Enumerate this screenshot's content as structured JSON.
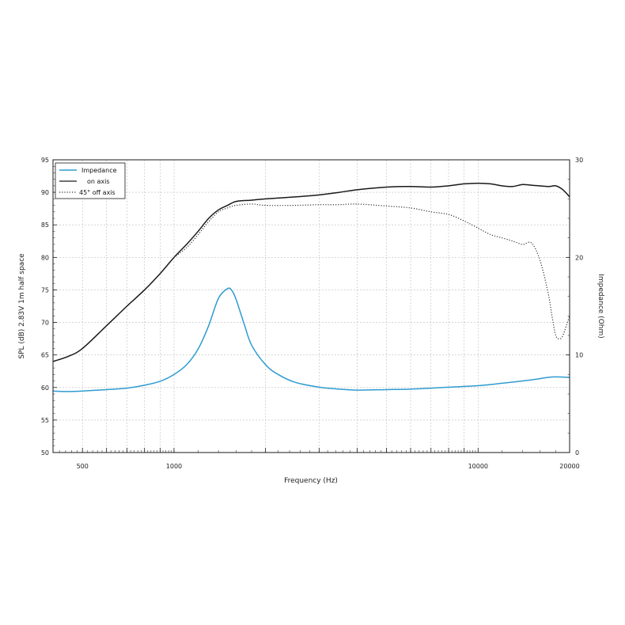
{
  "chart_data": {
    "type": "line",
    "xlabel": "Frequency (Hz)",
    "ylabel": "SPL (dB)  2.83V  1m  half space",
    "y2label": "Impedance (Ohm)",
    "xscale": "log",
    "xlim": [
      400,
      20000
    ],
    "ylim": [
      50,
      95
    ],
    "y2lim": [
      0,
      30
    ],
    "grid": true,
    "legend": "top-left",
    "xticks": [
      500,
      1000,
      10000,
      20000
    ],
    "xtick_labels": [
      "500",
      "1000",
      "10000",
      "20000"
    ],
    "yticks": [
      50,
      55,
      60,
      65,
      70,
      75,
      80,
      85,
      90,
      95
    ],
    "ytick_labels": [
      "50",
      "55",
      "60",
      "65",
      "70",
      "75",
      "80",
      "85",
      "90",
      "95"
    ],
    "y2ticks": [
      0,
      10,
      20,
      30
    ],
    "y2tick_labels": [
      "0",
      "10",
      "20",
      "30"
    ],
    "series": [
      {
        "name": "Impedance",
        "axis": "right",
        "color": "#2f9bd0",
        "style": "solid",
        "points": [
          [
            400,
            6.3
          ],
          [
            450,
            6.25
          ],
          [
            500,
            6.3
          ],
          [
            600,
            6.45
          ],
          [
            700,
            6.6
          ],
          [
            800,
            6.9
          ],
          [
            900,
            7.3
          ],
          [
            1000,
            8.0
          ],
          [
            1100,
            9.0
          ],
          [
            1200,
            10.6
          ],
          [
            1300,
            13.0
          ],
          [
            1400,
            15.8
          ],
          [
            1500,
            16.8
          ],
          [
            1550,
            16.6
          ],
          [
            1600,
            15.7
          ],
          [
            1700,
            13.2
          ],
          [
            1800,
            11.0
          ],
          [
            2000,
            9.0
          ],
          [
            2200,
            8.0
          ],
          [
            2500,
            7.2
          ],
          [
            3000,
            6.7
          ],
          [
            3500,
            6.5
          ],
          [
            4000,
            6.4
          ],
          [
            5000,
            6.45
          ],
          [
            6000,
            6.5
          ],
          [
            7000,
            6.6
          ],
          [
            8000,
            6.7
          ],
          [
            10000,
            6.85
          ],
          [
            12000,
            7.1
          ],
          [
            15000,
            7.45
          ],
          [
            17000,
            7.7
          ],
          [
            18000,
            7.75
          ],
          [
            20000,
            7.7
          ]
        ]
      },
      {
        "name": "on axis",
        "axis": "left",
        "color": "#1a1a1a",
        "style": "solid",
        "points": [
          [
            400,
            64.0
          ],
          [
            450,
            64.8
          ],
          [
            500,
            66.0
          ],
          [
            600,
            69.5
          ],
          [
            700,
            72.5
          ],
          [
            800,
            75.0
          ],
          [
            900,
            77.5
          ],
          [
            1000,
            80.0
          ],
          [
            1100,
            82.0
          ],
          [
            1200,
            84.0
          ],
          [
            1300,
            86.0
          ],
          [
            1400,
            87.3
          ],
          [
            1500,
            88.0
          ],
          [
            1600,
            88.6
          ],
          [
            1800,
            88.8
          ],
          [
            2000,
            89.0
          ],
          [
            2500,
            89.3
          ],
          [
            3000,
            89.6
          ],
          [
            3500,
            90.0
          ],
          [
            4000,
            90.4
          ],
          [
            5000,
            90.8
          ],
          [
            6000,
            90.9
          ],
          [
            7000,
            90.8
          ],
          [
            8000,
            91.0
          ],
          [
            9000,
            91.3
          ],
          [
            10000,
            91.4
          ],
          [
            11000,
            91.3
          ],
          [
            12000,
            91.0
          ],
          [
            13000,
            90.9
          ],
          [
            14000,
            91.2
          ],
          [
            15000,
            91.1
          ],
          [
            17000,
            90.9
          ],
          [
            18000,
            91.0
          ],
          [
            19000,
            90.4
          ],
          [
            20000,
            89.3
          ]
        ]
      },
      {
        "name": "45° off axis",
        "axis": "left",
        "color": "#333333",
        "style": "dotted",
        "points": [
          [
            1000,
            80.0
          ],
          [
            1100,
            81.5
          ],
          [
            1200,
            83.5
          ],
          [
            1300,
            85.5
          ],
          [
            1400,
            87.0
          ],
          [
            1500,
            87.6
          ],
          [
            1600,
            88.0
          ],
          [
            1800,
            88.2
          ],
          [
            2000,
            88.0
          ],
          [
            2500,
            88.0
          ],
          [
            3000,
            88.1
          ],
          [
            3500,
            88.1
          ],
          [
            4000,
            88.2
          ],
          [
            5000,
            87.9
          ],
          [
            6000,
            87.6
          ],
          [
            7000,
            87.0
          ],
          [
            8000,
            86.6
          ],
          [
            9000,
            85.6
          ],
          [
            10000,
            84.5
          ],
          [
            11000,
            83.5
          ],
          [
            12000,
            83.0
          ],
          [
            13000,
            82.5
          ],
          [
            14000,
            82.0
          ],
          [
            15000,
            82.2
          ],
          [
            16000,
            79.5
          ],
          [
            17000,
            74.5
          ],
          [
            17500,
            71.0
          ],
          [
            18000,
            68.0
          ],
          [
            18500,
            67.5
          ],
          [
            19000,
            68.0
          ],
          [
            20000,
            71.0
          ]
        ]
      }
    ]
  }
}
